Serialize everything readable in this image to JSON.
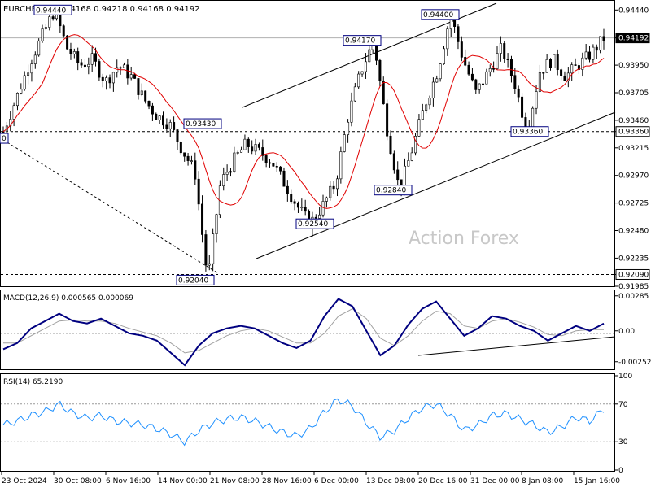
{
  "header": {
    "symbol": "EURCHF,H4",
    "ohlc": "0.94168 0.94218 0.94168 0.94192"
  },
  "watermark": "Action Forex",
  "colors": {
    "candle": "#000000",
    "ma": "#e00000",
    "macd": "#000080",
    "signal": "#a0a0a0",
    "rsi": "#1e90ff",
    "label_border": "#000080",
    "current_price_bg": "#000000"
  },
  "chart_data": [
    {
      "type": "candlestick",
      "title": "",
      "ylim": [
        0.91985,
        0.945
      ],
      "y_ticks": [
        "0.94440",
        "0.94192",
        "0.93950",
        "0.93705",
        "0.93460",
        "0.93360",
        "0.93215",
        "0.92970",
        "0.92725",
        "0.92480",
        "0.92235",
        "0.92090",
        "0.91985"
      ],
      "x_ticks": [
        "23 Oct 2024",
        "30 Oct 08:00",
        "6 Nov 16:00",
        "14 Nov 00:00",
        "21 Nov 08:00",
        "28 Nov 16:00",
        "6 Dec 00:00",
        "13 Dec 08:00",
        "20 Dec 16:00",
        "31 Dec 00:00",
        "8 Jan 08:00",
        "15 Jan 16:00"
      ],
      "current_price": "0.94192",
      "levels": [
        "0.93360",
        "0.92090"
      ],
      "annotations": [
        "0.94440",
        "0.94170",
        "0.94400",
        "0.93430",
        "0.93360",
        "0.92840",
        "0.92540",
        "0.92040",
        "0"
      ],
      "series_path": [
        0.9336,
        0.9365,
        0.9395,
        0.942,
        0.9444,
        0.941,
        0.9395,
        0.94,
        0.938,
        0.9395,
        0.9385,
        0.9365,
        0.935,
        0.9343,
        0.932,
        0.93,
        0.9204,
        0.929,
        0.931,
        0.9325,
        0.9318,
        0.931,
        0.929,
        0.927,
        0.9254,
        0.927,
        0.929,
        0.935,
        0.939,
        0.9417,
        0.934,
        0.9284,
        0.932,
        0.936,
        0.939,
        0.944,
        0.94,
        0.937,
        0.939,
        0.941,
        0.938,
        0.9336,
        0.939,
        0.94,
        0.9385,
        0.9395,
        0.9405,
        0.9419
      ]
    },
    {
      "type": "line",
      "title": "MACD(12,26,9) 0.000565 0.000069",
      "y_ticks": [
        "0.00285",
        "0.00",
        "-0.00252"
      ],
      "ylim": [
        -0.003,
        0.0031
      ],
      "macd": [
        -0.0015,
        -0.001,
        0.0002,
        0.0008,
        0.0014,
        0.0008,
        0.0006,
        0.001,
        0.0004,
        -0.0002,
        -0.0004,
        -0.0008,
        -0.0018,
        -0.0028,
        -0.0012,
        -0.0002,
        0.0002,
        0.0004,
        0.0002,
        -0.0004,
        -0.001,
        -0.0014,
        -0.0008,
        0.0012,
        0.0026,
        0.002,
        0.0,
        -0.002,
        -0.0012,
        0.0005,
        0.0018,
        0.0024,
        0.001,
        -0.0004,
        0.0002,
        0.0012,
        0.001,
        0.0004,
        0.0,
        -0.0008,
        -0.0002,
        0.0004,
        0.0,
        0.0006
      ],
      "signal": [
        -0.001,
        -0.001,
        -0.0004,
        0.0002,
        0.0008,
        0.0009,
        0.0008,
        0.0008,
        0.0006,
        0.0002,
        -0.0001,
        -0.0004,
        -0.001,
        -0.0018,
        -0.0016,
        -0.001,
        -0.0004,
        0.0,
        0.0002,
        0.0,
        -0.0005,
        -0.001,
        -0.001,
        -0.0002,
        0.0012,
        0.0018,
        0.001,
        -0.0006,
        -0.0012,
        -0.0004,
        0.0008,
        0.0016,
        0.0014,
        0.0004,
        0.0002,
        0.0008,
        0.001,
        0.0007,
        0.0003,
        -0.0003,
        -0.0004,
        0.0,
        0.0001,
        0.0001
      ]
    },
    {
      "type": "line",
      "title": "RSI(14) 65.2190",
      "y_ticks": [
        "100",
        "70",
        "30",
        "0"
      ],
      "ylim": [
        0,
        100
      ],
      "levels": [
        70,
        30
      ],
      "rsi": [
        48,
        52,
        58,
        62,
        70,
        60,
        55,
        58,
        52,
        50,
        48,
        44,
        38,
        30,
        42,
        50,
        54,
        56,
        52,
        46,
        40,
        36,
        44,
        62,
        75,
        68,
        50,
        35,
        42,
        55,
        66,
        70,
        58,
        42,
        48,
        58,
        60,
        54,
        48,
        40,
        46,
        56,
        52,
        65
      ]
    }
  ]
}
